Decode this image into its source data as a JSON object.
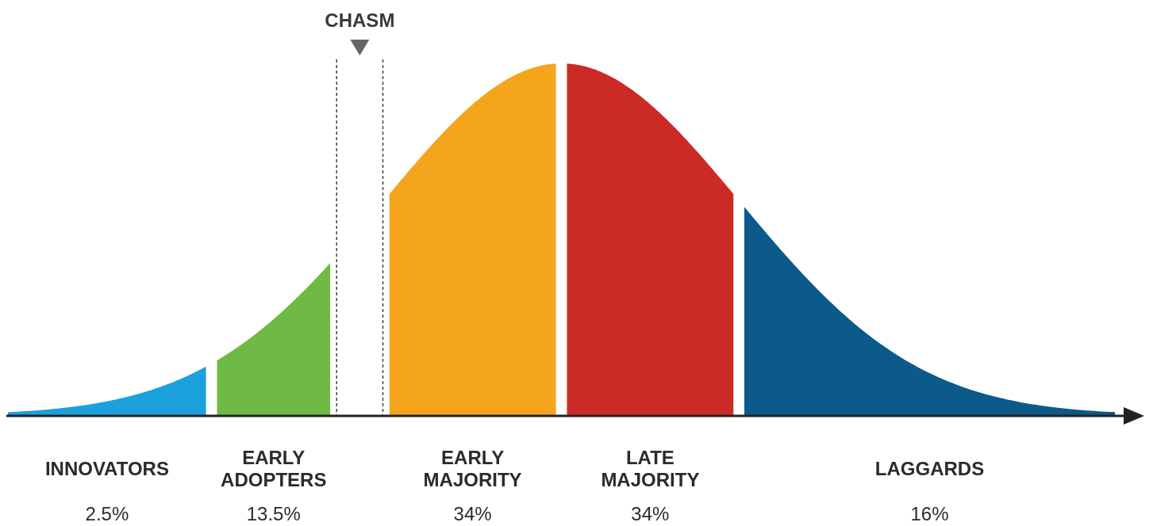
{
  "chart_data": {
    "type": "other",
    "categories": [
      "INNOVATORS",
      "EARLY ADOPTERS",
      "EARLY MAJORITY",
      "LATE MAJORITY",
      "LAGGARDS"
    ],
    "values": [
      2.5,
      13.5,
      34,
      34,
      16
    ],
    "colors": [
      "#1ba1dc",
      "#6fba44",
      "#f5a51c",
      "#cc2a27",
      "#0b5a8a"
    ],
    "value_labels": [
      "2.5%",
      "13.5%",
      "34%",
      "34%",
      "16%"
    ],
    "annotations": [
      "CHASM"
    ]
  }
}
